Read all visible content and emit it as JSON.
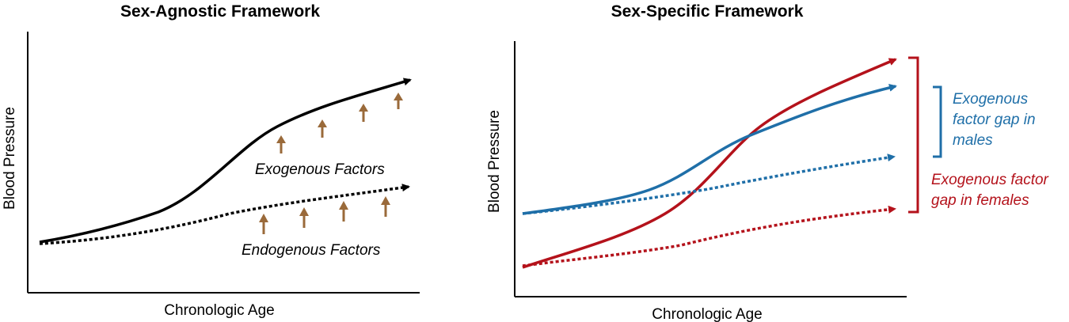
{
  "colors": {
    "black": "#000000",
    "arrow_brown": "#9a6a3a",
    "male_blue": "#1f6fa8",
    "female_red": "#b4121b"
  },
  "left_panel": {
    "title": "Sex-Agnostic Framework",
    "xlabel": "Chronologic Age",
    "ylabel": "Blood Pressure",
    "upper_label": "Exogenous Factors",
    "lower_label": "Endogenous Factors",
    "curves": [
      {
        "style": "solid",
        "color": "black"
      },
      {
        "style": "dotted",
        "color": "black"
      }
    ],
    "upward_arrow_icon": "up-arrow-icon"
  },
  "right_panel": {
    "title": "Sex-Specific Framework",
    "xlabel": "Chronologic Age",
    "ylabel": "Blood Pressure",
    "male_gap_label": [
      "Exogenous",
      "factor gap in",
      "males"
    ],
    "female_gap_label": [
      "Exogenous factor",
      "gap in females"
    ],
    "curves": [
      {
        "style": "solid",
        "color": "male_blue"
      },
      {
        "style": "dotted",
        "color": "male_blue"
      },
      {
        "style": "solid",
        "color": "female_red"
      },
      {
        "style": "dotted",
        "color": "female_red"
      }
    ]
  }
}
